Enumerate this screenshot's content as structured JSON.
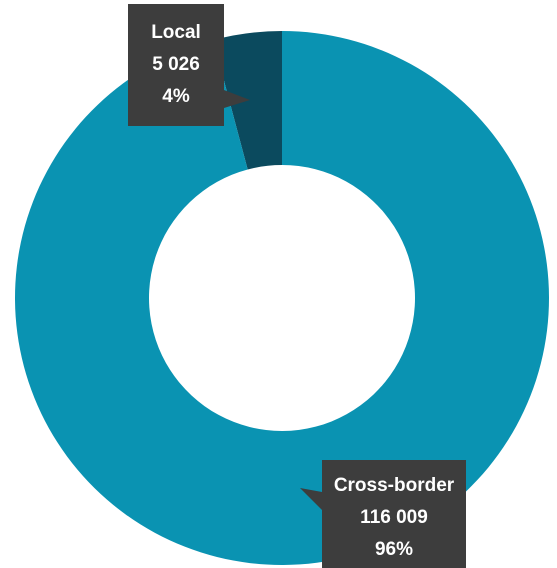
{
  "chart_data": {
    "type": "pie",
    "donut": true,
    "legend": "none",
    "slices": [
      {
        "label": "Local",
        "value": 5026,
        "value_text": "5 026",
        "percent_text": "4%",
        "color": "#0b4a5e"
      },
      {
        "label": "Cross-border",
        "value": 116009,
        "value_text": "116 009",
        "percent_text": "96%",
        "color": "#0a93b2"
      }
    ],
    "callout_color": "#3d3d3d",
    "text_color": "#ffffff"
  }
}
